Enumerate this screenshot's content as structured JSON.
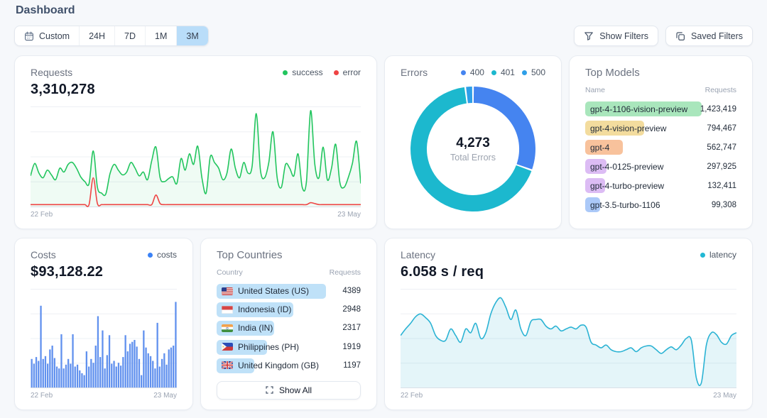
{
  "header": {
    "title": "Dashboard"
  },
  "toolbar": {
    "time_ranges": {
      "custom": "Custom",
      "h24": "24H",
      "d7": "7D",
      "m1": "1M",
      "m3": "3M",
      "selected": "3M"
    },
    "show_filters": "Show Filters",
    "saved_filters": "Saved Filters"
  },
  "cards": {
    "requests": {
      "title": "Requests",
      "value": "3,310,278",
      "legend": [
        {
          "label": "success",
          "color": "#22c55e"
        },
        {
          "label": "error",
          "color": "#ef4444"
        }
      ],
      "x_start": "22 Feb",
      "x_end": "23 May"
    },
    "errors": {
      "title": "Errors",
      "legend": [
        {
          "label": "400",
          "color": "#4584f0"
        },
        {
          "label": "401",
          "color": "#1cb8ce"
        },
        {
          "label": "500",
          "color": "#2e9fe8"
        }
      ],
      "total_value": "4,273",
      "total_label": "Total Errors"
    },
    "top_models": {
      "title": "Top Models",
      "columns": {
        "name": "Name",
        "requests": "Requests"
      },
      "rows": [
        {
          "name": "gpt-4-1106-vision-preview",
          "requests": "1,423,419",
          "color": "#a9e6bc",
          "bar_pct": 77
        },
        {
          "name": "gpt-4-vision-preview",
          "requests": "794,467",
          "color": "#f3dc9e",
          "bar_pct": 39
        },
        {
          "name": "gpt-4",
          "requests": "562,747",
          "color": "#f8c29c",
          "bar_pct": 25
        },
        {
          "name": "gpt-4-0125-preview",
          "requests": "297,925",
          "color": "#dcbcf4",
          "bar_pct": 14
        },
        {
          "name": "gpt-4-turbo-preview",
          "requests": "132,411",
          "color": "#dcbcf4",
          "bar_pct": 13
        },
        {
          "name": "gpt-3.5-turbo-1106",
          "requests": "99,308",
          "color": "#abc9f8",
          "bar_pct": 10
        }
      ]
    },
    "costs": {
      "title": "Costs",
      "value": "$93,128.22",
      "legend": [
        {
          "label": "costs",
          "color": "#3b82f6"
        }
      ],
      "x_start": "22 Feb",
      "x_end": "23 May"
    },
    "top_countries": {
      "title": "Top Countries",
      "columns": {
        "country": "Country",
        "requests": "Requests"
      },
      "rows": [
        {
          "code": "US",
          "name": "United States (US)",
          "requests": "4389",
          "color": "#bfe1f8",
          "bar_pct": 76
        },
        {
          "code": "ID",
          "name": "Indonesia (ID)",
          "requests": "2948",
          "color": "#bfe1f8",
          "bar_pct": 53
        },
        {
          "code": "IN",
          "name": "India (IN)",
          "requests": "2317",
          "color": "#bfe1f8",
          "bar_pct": 40
        },
        {
          "code": "PH",
          "name": "Philippines (PH)",
          "requests": "1919",
          "color": "#bfe1f8",
          "bar_pct": 35
        },
        {
          "code": "GB",
          "name": "United Kingdom (GB)",
          "requests": "1197",
          "color": "#bfe1f8",
          "bar_pct": 26
        }
      ],
      "show_all": "Show All"
    },
    "latency": {
      "title": "Latency",
      "value": "6.058 s / req",
      "legend": [
        {
          "label": "latency",
          "color": "#22b8d4"
        }
      ],
      "x_start": "22 Feb",
      "x_end": "23 May"
    }
  },
  "chart_data": [
    {
      "type": "line",
      "title": "Requests",
      "x_range": [
        "22 Feb",
        "23 May"
      ],
      "y_units": "relative_percent_of_max",
      "gridlines": 5,
      "legend_position": "top-right",
      "series": [
        {
          "name": "success",
          "color": "#22c55e",
          "fill": "rgba(34,197,94,0.07)",
          "values": [
            32,
            45,
            35,
            30,
            38,
            33,
            28,
            40,
            36,
            44,
            46,
            40,
            31,
            26,
            24,
            58,
            20,
            14,
            13,
            34,
            44,
            38,
            33,
            36,
            46,
            40,
            32,
            36,
            28,
            48,
            62,
            30,
            26,
            29,
            31,
            24,
            50,
            38,
            55,
            44,
            63,
            30,
            14,
            52,
            46,
            40,
            28,
            35,
            60,
            40,
            30,
            46,
            35,
            42,
            97,
            38,
            30,
            46,
            78,
            30,
            20,
            44,
            40,
            32,
            55,
            20,
            26,
            100,
            44,
            30,
            62,
            28,
            40,
            65,
            25,
            20,
            30,
            45,
            68,
            24
          ]
        },
        {
          "name": "error",
          "color": "#ef4444",
          "fill": null,
          "values": [
            2,
            2,
            2,
            2,
            2,
            2,
            2,
            2,
            2,
            2,
            2,
            2,
            2,
            2,
            2,
            30,
            3,
            2,
            2,
            2,
            2,
            2,
            2,
            2,
            2,
            2,
            2,
            2,
            2,
            2,
            12,
            3,
            2,
            2,
            2,
            2,
            2,
            2,
            2,
            2,
            2,
            2,
            2,
            2,
            2,
            2,
            2,
            2,
            2,
            2,
            2,
            2,
            2,
            2,
            2,
            2,
            2,
            2,
            2,
            2,
            2,
            2,
            2,
            2,
            2,
            2,
            2,
            4,
            3,
            2,
            2,
            2,
            2,
            2,
            2,
            2,
            2,
            2,
            2,
            2
          ]
        }
      ]
    },
    {
      "type": "donut",
      "title": "Errors",
      "total": 4273,
      "center_label": "Total Errors",
      "segments": [
        {
          "name": "400",
          "color": "#4584f0",
          "share_pct": 30.5
        },
        {
          "name": "401",
          "color": "#1cb8ce",
          "share_pct": 67.5
        },
        {
          "name": "500",
          "color": "#2e9fe8",
          "share_pct": 2.0
        }
      ]
    },
    {
      "type": "bar",
      "title": "Costs",
      "x_range": [
        "22 Feb",
        "23 May"
      ],
      "y_units": "relative_percent_of_max",
      "color": "#6191ee",
      "gridlines": 5,
      "values": [
        30,
        25,
        32,
        28,
        86,
        30,
        33,
        25,
        40,
        44,
        31,
        22,
        20,
        56,
        20,
        24,
        30,
        25,
        56,
        22,
        24,
        18,
        15,
        13,
        38,
        22,
        30,
        26,
        44,
        75,
        32,
        60,
        20,
        34,
        55,
        25,
        28,
        22,
        26,
        23,
        32,
        55,
        38,
        46,
        48,
        50,
        43,
        30,
        13,
        60,
        42,
        36,
        33,
        28,
        20,
        68,
        22,
        30,
        36,
        24,
        40,
        42,
        44,
        90
      ]
    },
    {
      "type": "line",
      "title": "Latency",
      "x_range": [
        "22 Feb",
        "23 May"
      ],
      "y_units": "relative_percent_of_max",
      "gridlines": 5,
      "series": [
        {
          "name": "latency",
          "color": "#2bb3d4",
          "fill": "rgba(43,179,212,0.13)",
          "smooth": true,
          "values": [
            55,
            62,
            68,
            75,
            78,
            74,
            68,
            55,
            50,
            50,
            62,
            55,
            48,
            62,
            58,
            68,
            52,
            58,
            78,
            90,
            95,
            85,
            72,
            82,
            62,
            55,
            70,
            72,
            72,
            65,
            62,
            65,
            60,
            62,
            64,
            62,
            66,
            64,
            48,
            45,
            42,
            45,
            40,
            38,
            38,
            40,
            42,
            38,
            42,
            44,
            44,
            40,
            36,
            40,
            43,
            40,
            45,
            52,
            50,
            10,
            5,
            45,
            58,
            56,
            48,
            46,
            55,
            58
          ]
        }
      ]
    }
  ]
}
